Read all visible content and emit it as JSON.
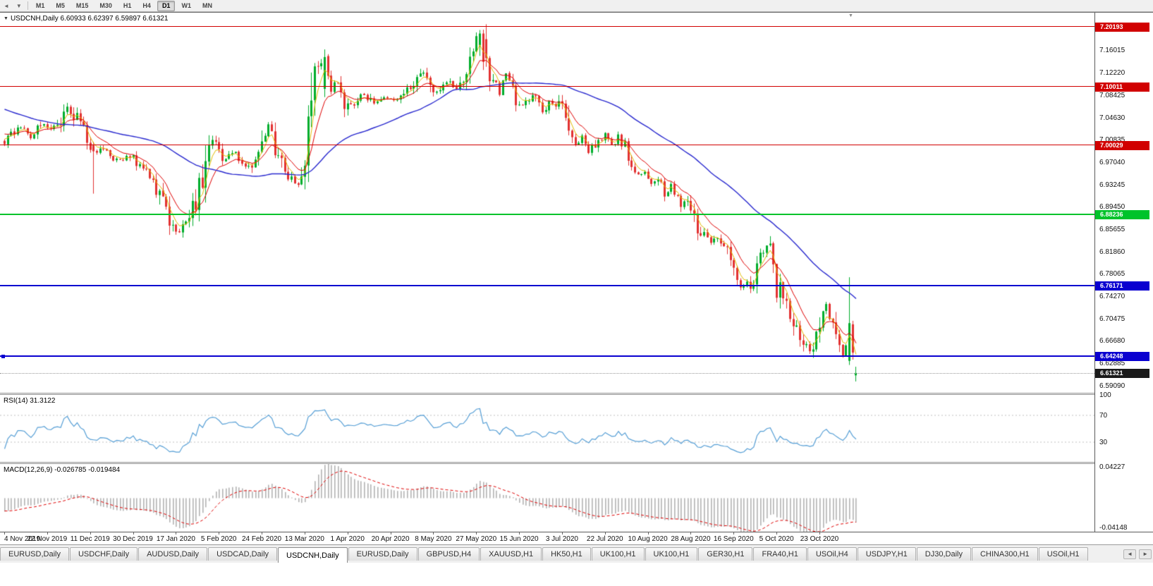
{
  "toolbar": {
    "nav_back": "◄",
    "nav_dropdown": "▼",
    "timeframes": [
      "M1",
      "M5",
      "M15",
      "M30",
      "H1",
      "H4",
      "D1",
      "W1",
      "MN"
    ],
    "active_timeframe": "D1"
  },
  "chart": {
    "menu_arrow": "▼",
    "header": "USDCNH,Daily 6.60933 6.62397 6.59897 6.61321",
    "shift_marker": "▼"
  },
  "indicators": {
    "rsi": {
      "header": "RSI(14) 31.3122",
      "value": "31.3122",
      "levels": [
        70,
        30
      ],
      "axis_labels": [
        {
          "v": 100,
          "t": "100"
        },
        {
          "v": 70,
          "t": "70"
        },
        {
          "v": 30,
          "t": "30"
        }
      ]
    },
    "macd": {
      "header": "MACD(12,26,9) -0.026785 -0.019484",
      "values": [
        "-0.026785",
        "-0.019484"
      ],
      "axis_top": {
        "v": 0.04227,
        "t": "0.04227"
      },
      "axis_bottom": {
        "v": -0.04148,
        "t": "-0.04148"
      }
    }
  },
  "chart_data": {
    "type": "candlestick",
    "symbol": "USDCNH",
    "timeframe": "Daily",
    "candle_count": 259,
    "last_candle": {
      "open": 6.60933,
      "high": 6.62397,
      "low": 6.59897,
      "close": 6.61321
    },
    "price_axis": {
      "top_price": 7.2254,
      "bottom_price": 6.5797,
      "ticks": [
        "7.16015",
        "7.12220",
        "7.08425",
        "7.04630",
        "7.00835",
        "6.97040",
        "6.93245",
        "6.89450",
        "6.85655",
        "6.81860",
        "6.78065",
        "6.74270",
        "6.70475",
        "6.66680",
        "6.62885",
        "6.59090"
      ]
    },
    "levels": [
      {
        "price": 7.20193,
        "label": "7.20193",
        "color": "#d10000",
        "thickness": 1
      },
      {
        "price": 7.10011,
        "label": "7.10011",
        "color": "#d10000",
        "thickness": 1
      },
      {
        "price": 7.00029,
        "label": "7.00029",
        "color": "#d10000",
        "thickness": 1
      },
      {
        "price": 6.88236,
        "label": "6.88236",
        "color": "#00c32b",
        "thickness": 2
      },
      {
        "price": 6.76171,
        "label": "6.76171",
        "color": "#0a00d0",
        "thickness": 2
      },
      {
        "price": 6.64248,
        "label": "6.64248",
        "color": "#0a00d0",
        "thickness": 2,
        "handle": true
      }
    ],
    "current_price": {
      "price": 6.61321,
      "label": "6.61321"
    },
    "moving_averages": [
      {
        "type": "ema",
        "period": 4,
        "color": "#e3bd00",
        "width": 1
      },
      {
        "type": "ema",
        "period": 10,
        "color": "#e00000",
        "width": 1
      },
      {
        "type": "sma",
        "period": 45,
        "color": "#2929cf",
        "width": 1.4
      }
    ],
    "colors": {
      "up": "#00ad2b",
      "down": "#e23131",
      "rsi_line": "#569fd6",
      "rsi_levels": "#c0c0c0",
      "macd_hist": "#b4b4b4",
      "macd_signal": "#e00000",
      "current_line": "#999999"
    },
    "close_anchors": [
      [
        0,
        7.008
      ],
      [
        4,
        7.03
      ],
      [
        8,
        7.015
      ],
      [
        12,
        7.036
      ],
      [
        16,
        7.026
      ],
      [
        19,
        7.066
      ],
      [
        22,
        7.042
      ],
      [
        26,
        7.002
      ],
      [
        30,
        6.988
      ],
      [
        34,
        6.974
      ],
      [
        38,
        6.982
      ],
      [
        42,
        6.96
      ],
      [
        46,
        6.928
      ],
      [
        50,
        6.878
      ],
      [
        52,
        6.846
      ],
      [
        54,
        6.864
      ],
      [
        58,
        6.91
      ],
      [
        61,
        6.972
      ],
      [
        63,
        7.016
      ],
      [
        66,
        6.97
      ],
      [
        70,
        6.986
      ],
      [
        74,
        6.96
      ],
      [
        78,
        7.004
      ],
      [
        80,
        7.036
      ],
      [
        83,
        6.984
      ],
      [
        86,
        6.944
      ],
      [
        89,
        6.932
      ],
      [
        91,
        6.956
      ],
      [
        93,
        7.078
      ],
      [
        95,
        7.118
      ],
      [
        97,
        7.15
      ],
      [
        99,
        7.086
      ],
      [
        101,
        7.112
      ],
      [
        103,
        7.076
      ],
      [
        106,
        7.062
      ],
      [
        109,
        7.088
      ],
      [
        112,
        7.07
      ],
      [
        115,
        7.084
      ],
      [
        118,
        7.076
      ],
      [
        121,
        7.09
      ],
      [
        124,
        7.098
      ],
      [
        127,
        7.128
      ],
      [
        129,
        7.1
      ],
      [
        131,
        7.094
      ],
      [
        134,
        7.11
      ],
      [
        137,
        7.094
      ],
      [
        140,
        7.124
      ],
      [
        143,
        7.176
      ],
      [
        144,
        7.19
      ],
      [
        146,
        7.14
      ],
      [
        148,
        7.108
      ],
      [
        150,
        7.092
      ],
      [
        152,
        7.122
      ],
      [
        154,
        7.086
      ],
      [
        157,
        7.068
      ],
      [
        160,
        7.084
      ],
      [
        163,
        7.06
      ],
      [
        166,
        7.074
      ],
      [
        169,
        7.062
      ],
      [
        171,
        7.024
      ],
      [
        173,
        6.996
      ],
      [
        175,
        7.012
      ],
      [
        177,
        6.99
      ],
      [
        179,
        7.004
      ],
      [
        182,
        7.016
      ],
      [
        184,
        7.0
      ],
      [
        186,
        7.014
      ],
      [
        188,
        6.994
      ],
      [
        190,
        6.97
      ],
      [
        192,
        6.946
      ],
      [
        194,
        6.952
      ],
      [
        196,
        6.934
      ],
      [
        198,
        6.948
      ],
      [
        200,
        6.918
      ],
      [
        202,
        6.93
      ],
      [
        204,
        6.908
      ],
      [
        206,
        6.9
      ],
      [
        208,
        6.89
      ],
      [
        210,
        6.86
      ],
      [
        212,
        6.846
      ],
      [
        214,
        6.836
      ],
      [
        216,
        6.844
      ],
      [
        218,
        6.822
      ],
      [
        220,
        6.806
      ],
      [
        222,
        6.78
      ],
      [
        224,
        6.76
      ],
      [
        226,
        6.766
      ],
      [
        228,
        6.79
      ],
      [
        230,
        6.82
      ],
      [
        231,
        6.836
      ],
      [
        233,
        6.79
      ],
      [
        234,
        6.758
      ],
      [
        236,
        6.742
      ],
      [
        238,
        6.716
      ],
      [
        240,
        6.694
      ],
      [
        242,
        6.67
      ],
      [
        244,
        6.652
      ],
      [
        246,
        6.682
      ],
      [
        247,
        6.71
      ],
      [
        249,
        6.726
      ],
      [
        251,
        6.696
      ],
      [
        253,
        6.66
      ],
      [
        254,
        6.636
      ],
      [
        255,
        6.662
      ],
      [
        256,
        6.698
      ],
      [
        257,
        6.648
      ],
      [
        258,
        6.613
      ]
    ],
    "candle_overrides": [
      {
        "i": 27,
        "o": 7.0,
        "h": 7.006,
        "l": 6.918,
        "c": 6.99
      },
      {
        "i": 97,
        "o": 7.096,
        "h": 7.163,
        "l": 7.082,
        "c": 7.15
      },
      {
        "i": 144,
        "o": 7.17,
        "h": 7.196,
        "l": 7.152,
        "c": 7.19
      },
      {
        "i": 145,
        "o": 7.19,
        "h": 7.1965,
        "l": 7.128,
        "c": 7.142
      },
      {
        "i": 256,
        "o": 6.634,
        "h": 6.776,
        "l": 6.627,
        "c": 6.698
      },
      {
        "i": 257,
        "o": 6.696,
        "h": 6.702,
        "l": 6.636,
        "c": 6.648
      },
      {
        "i": 258,
        "o": 6.60933,
        "h": 6.62397,
        "l": 6.59897,
        "c": 6.61321
      }
    ],
    "time_labels": [
      "4 Nov 2019",
      "22 Nov 2019",
      "11 Dec 2019",
      "30 Dec 2019",
      "17 Jan 2020",
      "5 Feb 2020",
      "24 Feb 2020",
      "13 Mar 2020",
      "1 Apr 2020",
      "20 Apr 2020",
      "8 May 2020",
      "27 May 2020",
      "15 Jun 2020",
      "3 Jul 2020",
      "22 Jul 2020",
      "10 Aug 2020",
      "28 Aug 2020",
      "16 Sep 2020",
      "5 Oct 2020",
      "23 Oct 2020"
    ],
    "label_interval_candles": 13
  },
  "tabbar": {
    "tabs": [
      "EURUSD,Daily",
      "USDCHF,Daily",
      "AUDUSD,Daily",
      "USDCAD,Daily",
      "USDCNH,Daily",
      "EURUSD,Daily",
      "GBPUSD,H4",
      "XAUUSD,H1",
      "HK50,H1",
      "UK100,H1",
      "UK100,H1",
      "GER30,H1",
      "FRA40,H1",
      "USOil,H4",
      "USDJPY,H1",
      "DJ30,Daily",
      "CHINA300,H1",
      "USOil,H1"
    ],
    "active_index": 4,
    "scroll_left": "◄",
    "scroll_right": "►"
  }
}
